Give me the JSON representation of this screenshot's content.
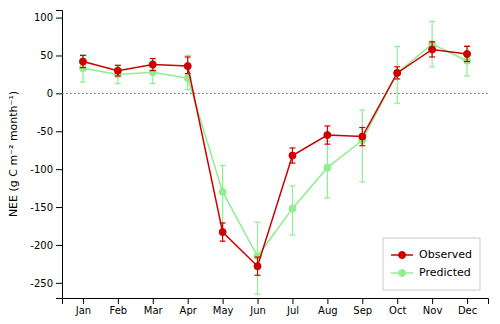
{
  "chart_data": {
    "type": "line",
    "categories": [
      "Jan",
      "Feb",
      "Mar",
      "Apr",
      "May",
      "Jun",
      "Jul",
      "Aug",
      "Sep",
      "Oct",
      "Nov",
      "Dec"
    ],
    "series": [
      {
        "name": "Observed",
        "color": "#CC0000",
        "marker": "circle",
        "line_style": "solid",
        "values": [
          42,
          30,
          38,
          36,
          -183,
          -228,
          -82,
          -55,
          -57,
          27,
          58,
          52
        ],
        "error_low": [
          8,
          7,
          8,
          10,
          12,
          12,
          10,
          12,
          12,
          8,
          10,
          10
        ],
        "error_high": [
          8,
          7,
          8,
          12,
          12,
          12,
          10,
          12,
          12,
          8,
          10,
          10
        ]
      },
      {
        "name": "Predicted",
        "color": "#90EE90",
        "marker": "circle",
        "line_style": "solid",
        "values": [
          33,
          25,
          28,
          20,
          -130,
          -215,
          -152,
          -98,
          -62,
          27,
          65,
          43
        ],
        "error_low": [
          18,
          12,
          15,
          15,
          55,
          50,
          35,
          40,
          55,
          40,
          30,
          20
        ],
        "error_high": [
          18,
          12,
          15,
          30,
          35,
          45,
          30,
          35,
          40,
          35,
          30,
          20
        ]
      }
    ],
    "hline": 0,
    "ylim": [
      -270,
      110
    ],
    "yticks": [
      -250,
      -200,
      -150,
      -100,
      -50,
      0,
      50,
      100
    ],
    "ylabel": "NEE (g C m⁻² month⁻¹)",
    "grid": false,
    "legend": "lower right"
  }
}
